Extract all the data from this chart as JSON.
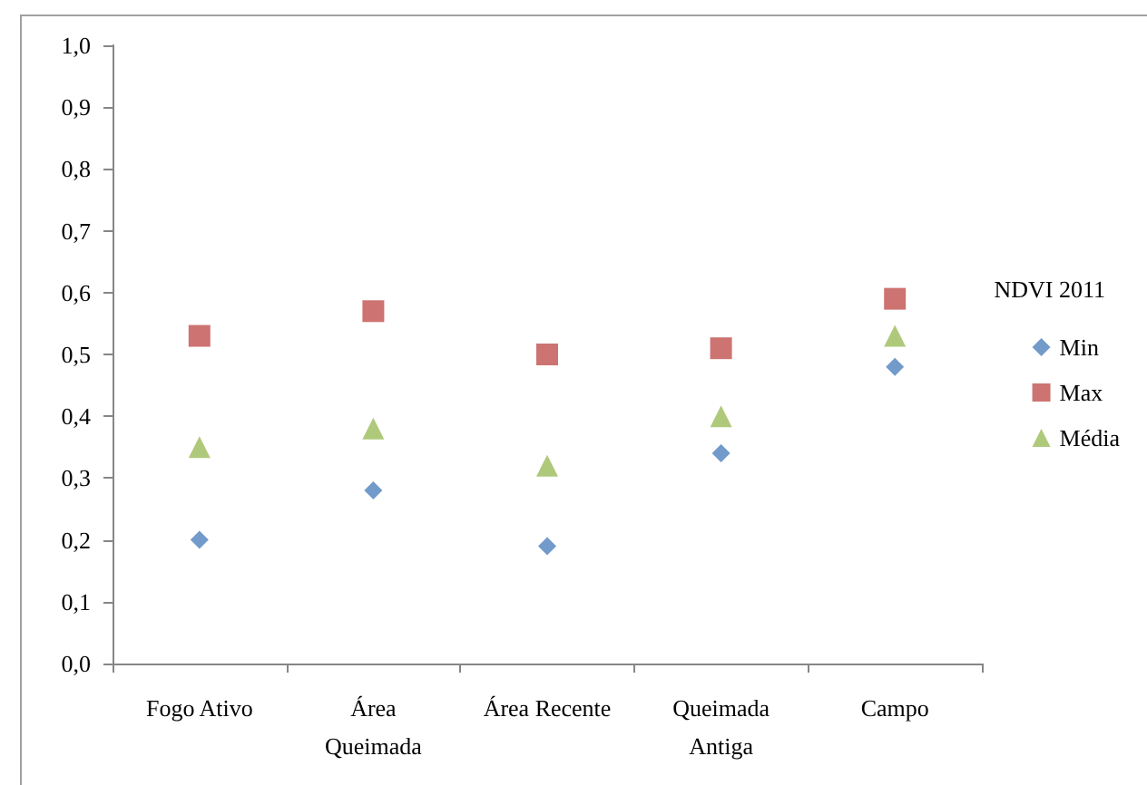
{
  "chart_data": {
    "type": "scatter",
    "legend_title": "NDVI 2011",
    "legend": "right",
    "categories": [
      "Fogo Ativo",
      "Área\nQueimada",
      "Área Recente",
      "Queimada\nAntiga",
      "Campo"
    ],
    "series": [
      {
        "name": "Min",
        "color": "#4f81bd",
        "marker": "diamond",
        "values": [
          0.2,
          0.28,
          0.19,
          0.34,
          0.48
        ]
      },
      {
        "name": "Max",
        "color": "#c0504d",
        "marker": "square",
        "values": [
          0.53,
          0.57,
          0.5,
          0.51,
          0.59
        ]
      },
      {
        "name": "Média",
        "color": "#9bbb59",
        "marker": "triangle",
        "values": [
          0.35,
          0.38,
          0.32,
          0.4,
          0.53
        ]
      }
    ],
    "ylim": [
      0,
      1
    ],
    "yticks": [
      {
        "value": 0,
        "label": "0,0"
      },
      {
        "value": 0.1,
        "label": "0,1"
      },
      {
        "value": 0.2,
        "label": "0,2"
      },
      {
        "value": 0.3,
        "label": "0,3"
      },
      {
        "value": 0.4,
        "label": "0,4"
      },
      {
        "value": 0.5,
        "label": "0,5"
      },
      {
        "value": 0.6,
        "label": "0,6"
      },
      {
        "value": 0.7,
        "label": "0,7"
      },
      {
        "value": 0.8,
        "label": "0,8"
      },
      {
        "value": 0.9,
        "label": "0,9"
      },
      {
        "value": 1,
        "label": "1,0"
      }
    ],
    "grid": false
  }
}
